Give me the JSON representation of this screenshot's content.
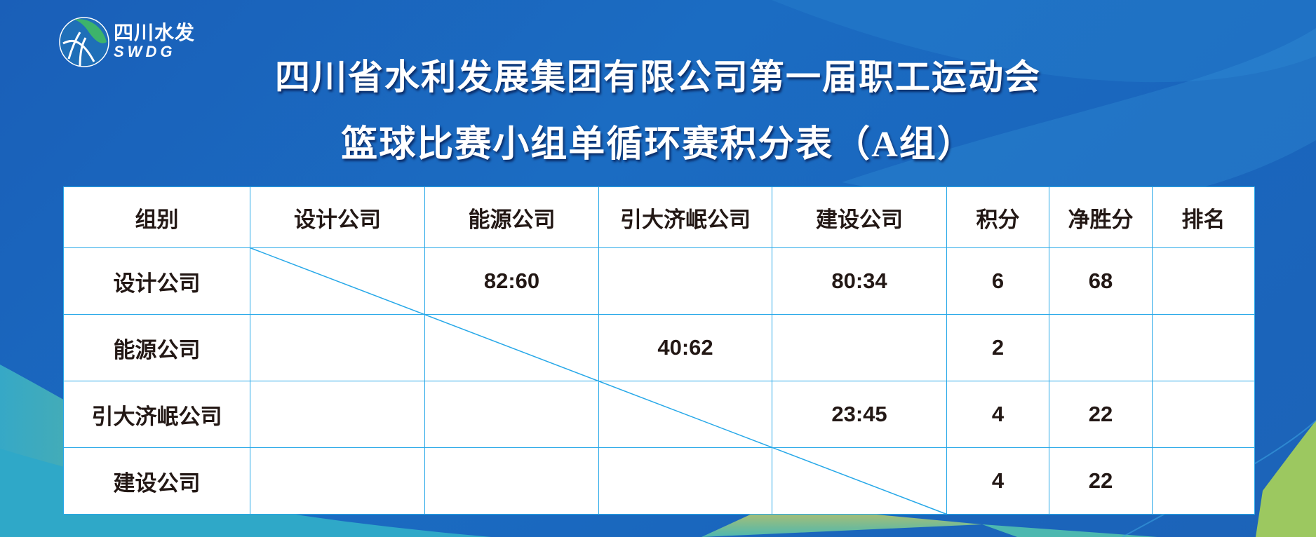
{
  "logo": {
    "cn": "四川水发",
    "en": "SWDG"
  },
  "title": "四川省水利发展集团有限公司第一届职工运动会",
  "subtitle": "篮球比赛小组单循环赛积分表（A组）",
  "table": {
    "headers": [
      "组别",
      "设计公司",
      "能源公司",
      "引大济岷公司",
      "建设公司",
      "积分",
      "净胜分",
      "排名"
    ],
    "rows": [
      [
        "设计公司",
        "",
        "82:60",
        "",
        "80:34",
        "6",
        "68",
        ""
      ],
      [
        "能源公司",
        "",
        "",
        "40:62",
        "",
        "2",
        "",
        ""
      ],
      [
        "引大济岷公司",
        "",
        "",
        "",
        "23:45",
        "4",
        "22",
        ""
      ],
      [
        "建设公司",
        "",
        "",
        "",
        "",
        "4",
        "22",
        ""
      ]
    ]
  },
  "colors": {
    "background": "#1a66bd",
    "grid": "#27a8e8",
    "text": "#231815"
  }
}
